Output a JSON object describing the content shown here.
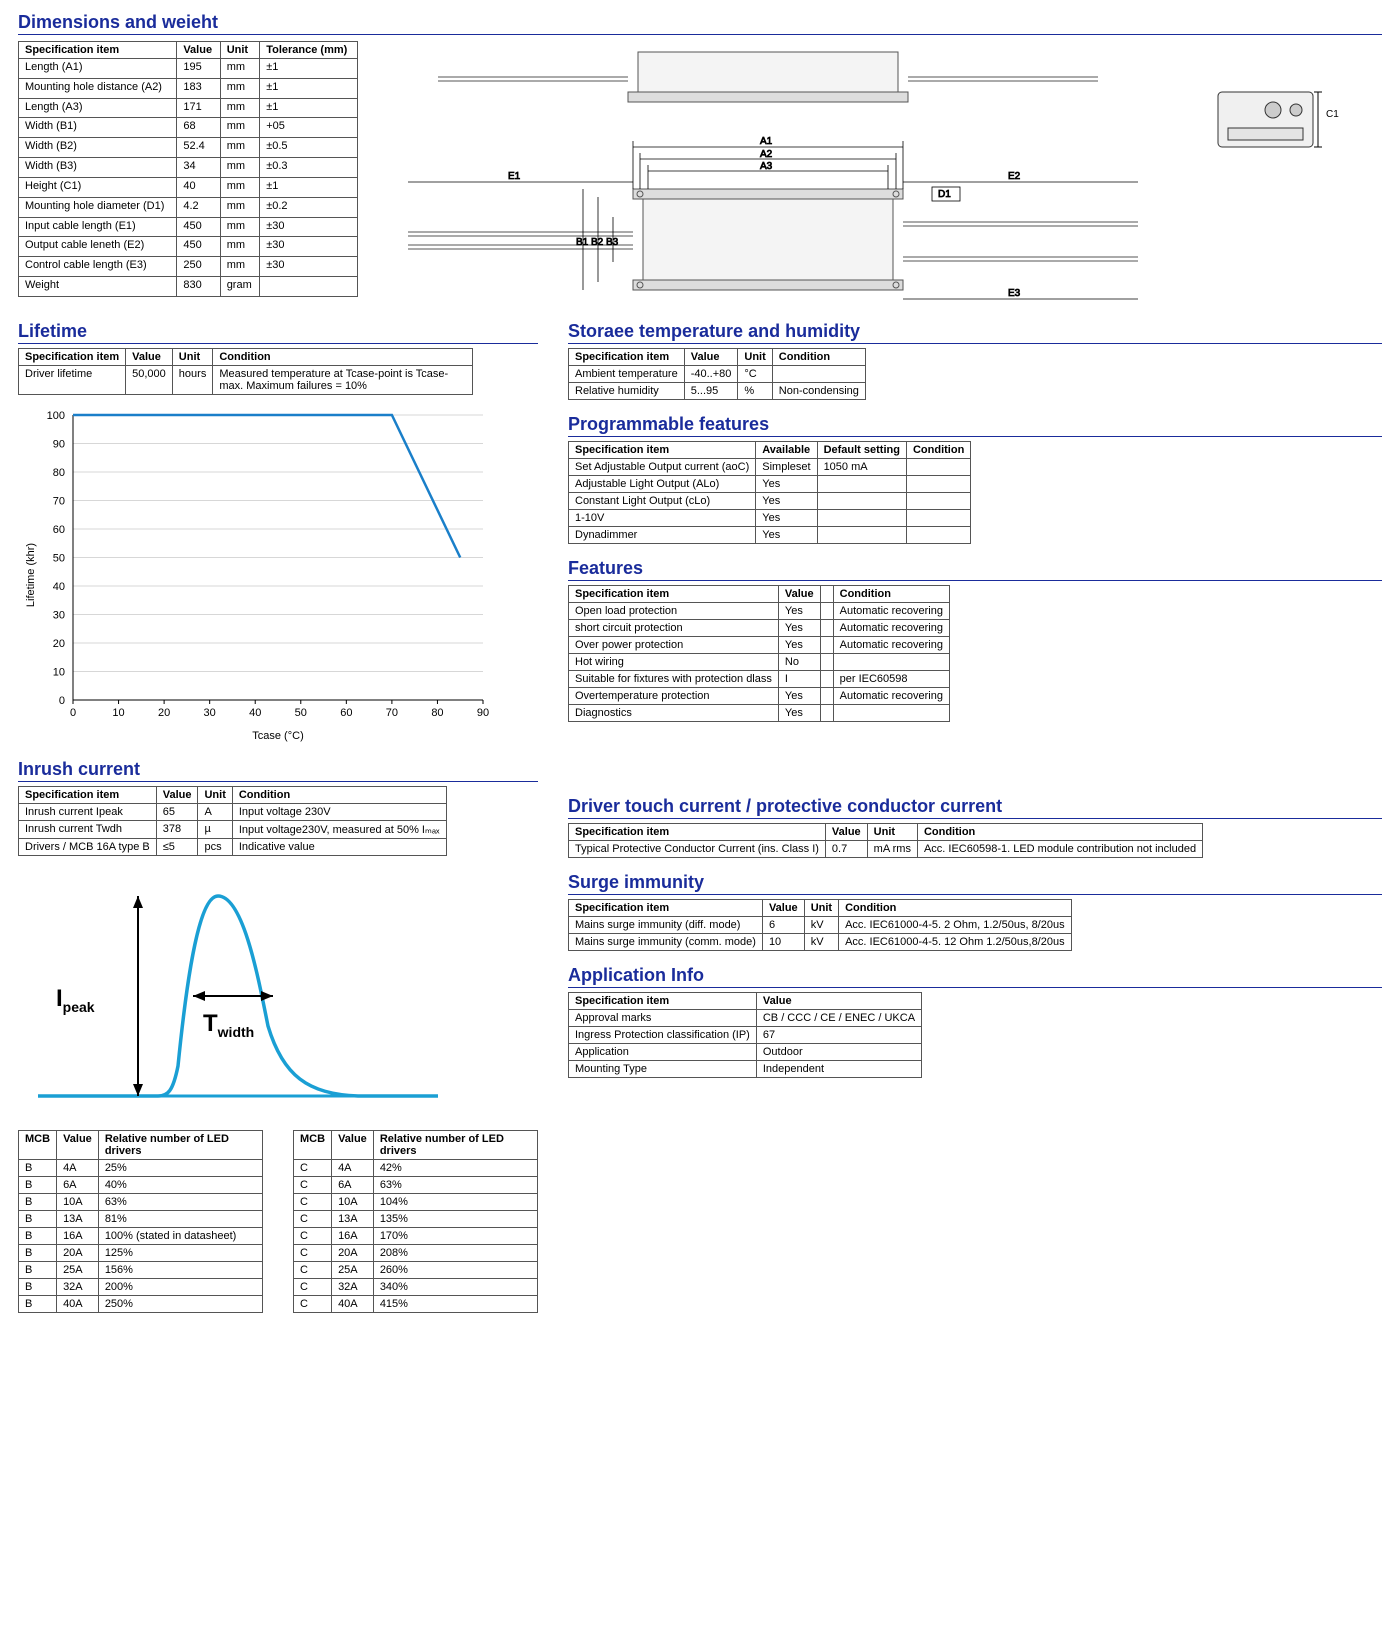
{
  "dimensions": {
    "title": "Dimensions and weieht",
    "columns": [
      "Specification item",
      "Value",
      "Unit",
      "Tolerance (mm)"
    ],
    "rows": [
      [
        "Length (A1)",
        "195",
        "mm",
        "±1"
      ],
      [
        "Mounting hole distance (A2)",
        "183",
        "mm",
        "±1"
      ],
      [
        "Length (A3)",
        "171",
        "mm",
        "±1"
      ],
      [
        "Width (B1)",
        "68",
        "mm",
        "+05"
      ],
      [
        "Width (B2)",
        "52.4",
        "mm",
        "±0.5"
      ],
      [
        "Width (B3)",
        "34",
        "mm",
        "±0.3"
      ],
      [
        "Height (C1)",
        "40",
        "mm",
        "±1"
      ],
      [
        "Mounting hole diameter (D1)",
        "4.2",
        "mm",
        "±0.2"
      ],
      [
        "Input cable length (E1)",
        "450",
        "mm",
        "±30"
      ],
      [
        "Output cable leneth (E2)",
        "450",
        "mm",
        "±30"
      ],
      [
        "Control cable length (E3)",
        "250",
        "mm",
        "±30"
      ],
      [
        "Weight",
        "830",
        "gram",
        ""
      ]
    ],
    "labels": {
      "A1": "A1",
      "A2": "A2",
      "A3": "A3",
      "B1": "B1",
      "B2": "B2",
      "B3": "B3",
      "C1": "C1",
      "D1": "D1",
      "E1": "E1",
      "E2": "E2",
      "E3": "E3"
    }
  },
  "lifetime": {
    "title": "Lifetime",
    "columns": [
      "Specification item",
      "Value",
      "Unit",
      "Condition"
    ],
    "row": [
      "Driver lifetime",
      "50,000",
      "hours",
      "Measured temperature at Tcase-point is Tcase-max. Maximum failures = 10%"
    ],
    "chart": {
      "type": "line",
      "ylabel": "Lifetime (khr)",
      "xlabel": "Tcase (°C)",
      "xlim": [
        0,
        90
      ],
      "xtick_step": 10,
      "ylim": [
        0,
        100
      ],
      "ytick_step": 10,
      "line_color": "#1a7fc9",
      "grid_color": "#b0b0b0",
      "points": [
        [
          0,
          100
        ],
        [
          70,
          100
        ],
        [
          85,
          50
        ]
      ]
    }
  },
  "inrush": {
    "title": "Inrush current",
    "columns": [
      "Specification item",
      "Value",
      "Unit",
      "Condition"
    ],
    "rows": [
      [
        "Inrush current Ipeak",
        "65",
        "A",
        "Input voltage 230V"
      ],
      [
        "Inrush current Twdh",
        "378",
        "µ",
        "Input voltage230V, measured at 50% Iₘₐₓ"
      ],
      [
        "Drivers / MCB 16A type B",
        "≤5",
        "pcs",
        "Indicative value"
      ]
    ],
    "diagram": {
      "curve_color": "#1a9fd4",
      "ipeak_label": "Ipeak",
      "twidth_label": "Twidth"
    },
    "mcb_columns": [
      "MCB",
      "Value",
      "Relative number of LED drivers"
    ],
    "mcb_b": [
      [
        "B",
        "4A",
        "25%"
      ],
      [
        "B",
        "6A",
        "40%"
      ],
      [
        "B",
        "10A",
        "63%"
      ],
      [
        "B",
        "13A",
        "81%"
      ],
      [
        "B",
        "16A",
        "100% (stated in datasheet)"
      ],
      [
        "B",
        "20A",
        "125%"
      ],
      [
        "B",
        "25A",
        "156%"
      ],
      [
        "B",
        "32A",
        "200%"
      ],
      [
        "B",
        "40A",
        "250%"
      ]
    ],
    "mcb_c": [
      [
        "C",
        "4A",
        "42%"
      ],
      [
        "C",
        "6A",
        "63%"
      ],
      [
        "C",
        "10A",
        "104%"
      ],
      [
        "C",
        "13A",
        "135%"
      ],
      [
        "C",
        "16A",
        "170%"
      ],
      [
        "C",
        "20A",
        "208%"
      ],
      [
        "C",
        "25A",
        "260%"
      ],
      [
        "C",
        "32A",
        "340%"
      ],
      [
        "C",
        "40A",
        "415%"
      ]
    ]
  },
  "storage": {
    "title": "Storaee temperature and humidity",
    "columns": [
      "Specification item",
      "Value",
      "Unit",
      "Condition"
    ],
    "rows": [
      [
        "Ambient temperature",
        "-40..+80",
        "°C",
        ""
      ],
      [
        "Relative humidity",
        "5...95",
        "%",
        "Non-condensing"
      ]
    ]
  },
  "prog": {
    "title": "Programmable features",
    "columns": [
      "Specification item",
      "Available",
      "Default setting",
      "Condition"
    ],
    "rows": [
      [
        "Set Adjustable Output current (aoC)",
        "Simpleset",
        "1050 mA",
        ""
      ],
      [
        "Adjustable Light Output (ALo)",
        "Yes",
        "",
        ""
      ],
      [
        "Constant Light Output (cLo)",
        "Yes",
        "",
        ""
      ],
      [
        "1-10V",
        "Yes",
        "",
        ""
      ],
      [
        "Dynadimmer",
        "Yes",
        "",
        ""
      ]
    ]
  },
  "features": {
    "title": "Features",
    "columns": [
      "Specification item",
      "Value",
      "",
      "Condition"
    ],
    "rows": [
      [
        "Open load protection",
        "Yes",
        "",
        "Automatic recovering"
      ],
      [
        "short circuit protection",
        "Yes",
        "",
        "Automatic recovering"
      ],
      [
        "Over power protection",
        "Yes",
        "",
        "Automatic recovering"
      ],
      [
        "Hot wiring",
        "No",
        "",
        ""
      ],
      [
        "Suitable for fixtures with protection dlass",
        "I",
        "",
        "per IEC60598"
      ],
      [
        "Overtemperature protection",
        "Yes",
        "",
        "Automatic recovering"
      ],
      [
        "Diagnostics",
        "Yes",
        "",
        ""
      ]
    ]
  },
  "touch": {
    "title": "Driver touch current / protective conductor current",
    "columns": [
      "Specification item",
      "Value",
      "Unit",
      "Condition"
    ],
    "rows": [
      [
        "Typical Protective Conductor Current (ins. Class I)",
        "0.7",
        "mA rms",
        "Acc. IEC60598-1. LED module contribution not included"
      ]
    ]
  },
  "surge": {
    "title": "Surge immunity",
    "columns": [
      "Specification item",
      "Value",
      "Unit",
      "Condition"
    ],
    "rows": [
      [
        "Mains surge immunity (diff. mode)",
        "6",
        "kV",
        "Acc. IEC61000-4-5. 2 Ohm, 1.2/50us, 8/20us"
      ],
      [
        "Mains surge immunity (comm. mode)",
        "10",
        "kV",
        "Acc. IEC61000-4-5. 12 Ohm 1.2/50us,8/20us"
      ]
    ]
  },
  "app": {
    "title": "Application Info",
    "columns": [
      "Specification item",
      "Value"
    ],
    "rows": [
      [
        "Approval marks",
        "CB / CCC / CE / ENEC / UKCA"
      ],
      [
        "Ingress Protection classification (IP)",
        "67"
      ],
      [
        "Application",
        "Outdoor"
      ],
      [
        "Mounting Type",
        "Independent"
      ]
    ]
  }
}
